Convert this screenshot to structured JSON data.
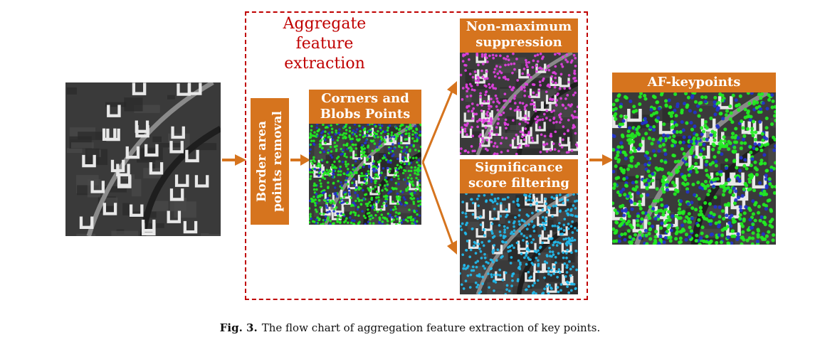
{
  "diagram": {
    "group_title_line1": "Aggregate feature",
    "group_title_line2": "extraction",
    "steps": {
      "border": "Border area points removal",
      "corners_line1": "Corners and",
      "corners_line2": "Blobs Points",
      "nms_line1": "Non-maximum",
      "nms_line2": "suppression",
      "sig_line1": "Significance",
      "sig_line2": "score filtering",
      "output": "AF-keypoints"
    },
    "colors": {
      "box_fill": "#d6741e",
      "group_border": "#c00000",
      "arrow": "#d6741e",
      "point_green": "#22ee22",
      "point_blue": "#2233cc",
      "point_magenta": "#e040e0",
      "point_cyan": "#22bbee"
    },
    "icons": [
      "aerial-image",
      "right-arrow-icon",
      "branch-arrow-icon"
    ]
  },
  "caption": {
    "label": "Fig. 3.",
    "text": "The flow chart of aggregation feature extraction of key points."
  }
}
